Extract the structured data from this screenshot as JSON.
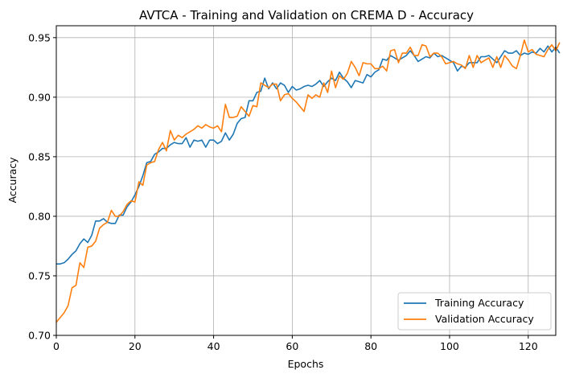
{
  "chart_data": {
    "type": "line",
    "title": "AVTCA - Training and Validation on CREMA D - Accuracy",
    "xlabel": "Epochs",
    "ylabel": "Accuracy",
    "xlim": [
      0,
      127
    ],
    "ylim": [
      0.7,
      0.96
    ],
    "xticks": [
      0,
      20,
      40,
      60,
      80,
      100,
      120
    ],
    "yticks": [
      0.7,
      0.75,
      0.8,
      0.85,
      0.9,
      0.95
    ],
    "xtick_labels": [
      "0",
      "20",
      "40",
      "60",
      "80",
      "100",
      "120"
    ],
    "ytick_labels": [
      "0.70",
      "0.75",
      "0.80",
      "0.85",
      "0.90",
      "0.95"
    ],
    "grid": true,
    "legend_position": "lower-right",
    "series": [
      {
        "name": "Training Accuracy",
        "color": "#1f77b4",
        "values": [
          0.76,
          0.76,
          0.761,
          0.764,
          0.768,
          0.771,
          0.777,
          0.781,
          0.778,
          0.784,
          0.796,
          0.796,
          0.798,
          0.795,
          0.794,
          0.794,
          0.801,
          0.801,
          0.808,
          0.812,
          0.818,
          0.825,
          0.834,
          0.845,
          0.846,
          0.852,
          0.854,
          0.857,
          0.857,
          0.86,
          0.862,
          0.861,
          0.861,
          0.866,
          0.858,
          0.864,
          0.863,
          0.864,
          0.858,
          0.864,
          0.864,
          0.861,
          0.863,
          0.87,
          0.864,
          0.869,
          0.878,
          0.882,
          0.883,
          0.897,
          0.897,
          0.904,
          0.905,
          0.916,
          0.907,
          0.912,
          0.907,
          0.912,
          0.91,
          0.904,
          0.909,
          0.906,
          0.907,
          0.909,
          0.91,
          0.909,
          0.911,
          0.914,
          0.909,
          0.913,
          0.916,
          0.914,
          0.921,
          0.916,
          0.913,
          0.908,
          0.914,
          0.913,
          0.912,
          0.919,
          0.917,
          0.921,
          0.923,
          0.932,
          0.931,
          0.935,
          0.933,
          0.931,
          0.933,
          0.935,
          0.939,
          0.935,
          0.93,
          0.932,
          0.934,
          0.933,
          0.937,
          0.934,
          0.935,
          0.933,
          0.931,
          0.929,
          0.922,
          0.926,
          0.925,
          0.929,
          0.929,
          0.929,
          0.934,
          0.934,
          0.935,
          0.932,
          0.929,
          0.934,
          0.939,
          0.937,
          0.937,
          0.939,
          0.935,
          0.937,
          0.936,
          0.938,
          0.937,
          0.941,
          0.938,
          0.943,
          0.938,
          0.942,
          0.937
        ]
      },
      {
        "name": "Validation Accuracy",
        "color": "#ff7f0e",
        "values": [
          0.711,
          0.715,
          0.719,
          0.725,
          0.74,
          0.742,
          0.761,
          0.757,
          0.774,
          0.775,
          0.779,
          0.79,
          0.793,
          0.795,
          0.805,
          0.8,
          0.8,
          0.804,
          0.81,
          0.813,
          0.812,
          0.829,
          0.826,
          0.843,
          0.845,
          0.846,
          0.856,
          0.862,
          0.855,
          0.872,
          0.864,
          0.868,
          0.866,
          0.869,
          0.871,
          0.873,
          0.876,
          0.874,
          0.877,
          0.875,
          0.874,
          0.876,
          0.871,
          0.894,
          0.883,
          0.883,
          0.884,
          0.892,
          0.888,
          0.884,
          0.893,
          0.892,
          0.912,
          0.91,
          0.908,
          0.911,
          0.911,
          0.897,
          0.902,
          0.903,
          0.899,
          0.896,
          0.892,
          0.888,
          0.902,
          0.899,
          0.902,
          0.9,
          0.912,
          0.904,
          0.922,
          0.908,
          0.918,
          0.915,
          0.92,
          0.93,
          0.925,
          0.918,
          0.929,
          0.928,
          0.928,
          0.924,
          0.924,
          0.926,
          0.922,
          0.939,
          0.94,
          0.929,
          0.937,
          0.937,
          0.942,
          0.935,
          0.935,
          0.944,
          0.943,
          0.934,
          0.937,
          0.937,
          0.934,
          0.928,
          0.929,
          0.93,
          0.928,
          0.927,
          0.924,
          0.935,
          0.925,
          0.935,
          0.929,
          0.931,
          0.933,
          0.925,
          0.934,
          0.925,
          0.935,
          0.931,
          0.926,
          0.924,
          0.935,
          0.948,
          0.938,
          0.94,
          0.936,
          0.935,
          0.934,
          0.94,
          0.944,
          0.939,
          0.946
        ]
      }
    ]
  }
}
